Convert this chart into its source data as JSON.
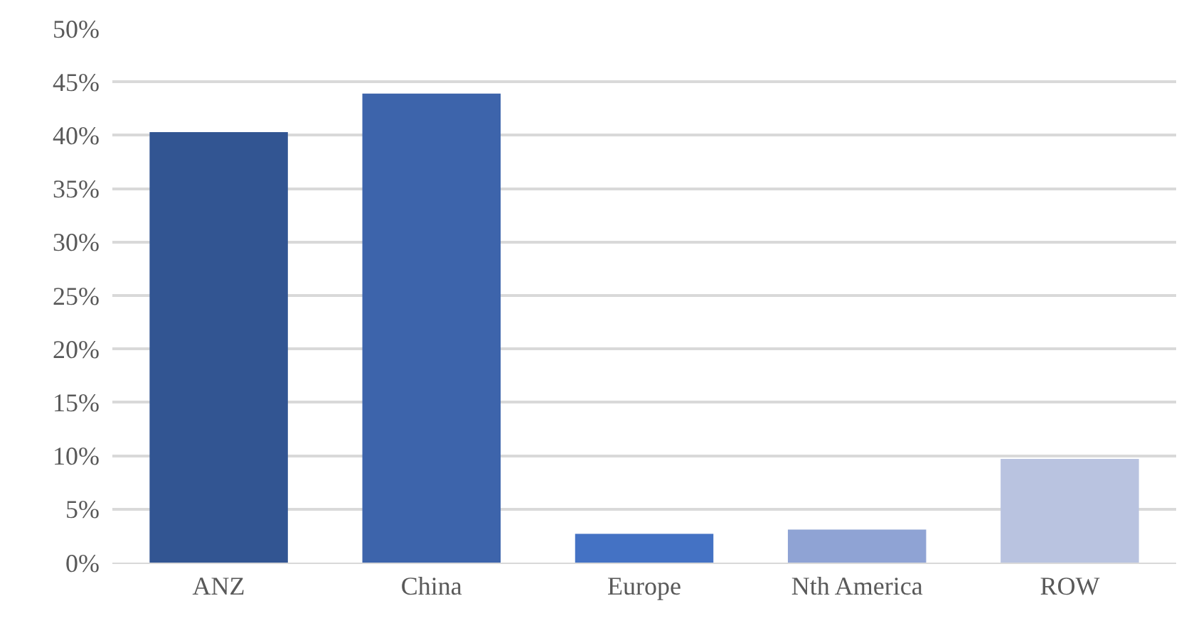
{
  "chart_data": {
    "type": "bar",
    "categories": [
      "ANZ",
      "China",
      "Europe",
      "Nth America",
      "ROW"
    ],
    "values": [
      40.3,
      43.9,
      2.7,
      3.1,
      9.7
    ],
    "colors": [
      "#325592",
      "#3d64ab",
      "#4472c4",
      "#8fa3d4",
      "#b9c3e0"
    ],
    "ylim": [
      0,
      50
    ],
    "yticks": [
      {
        "value": 0,
        "label": "0%"
      },
      {
        "value": 5,
        "label": "5%"
      },
      {
        "value": 10,
        "label": "10%"
      },
      {
        "value": 15,
        "label": "15%"
      },
      {
        "value": 20,
        "label": "20%"
      },
      {
        "value": 25,
        "label": "25%"
      },
      {
        "value": 30,
        "label": "30%"
      },
      {
        "value": 35,
        "label": "35%"
      },
      {
        "value": 40,
        "label": "40%"
      },
      {
        "value": 45,
        "label": "45%"
      },
      {
        "value": 50,
        "label": "50%"
      }
    ],
    "grid": "y"
  }
}
